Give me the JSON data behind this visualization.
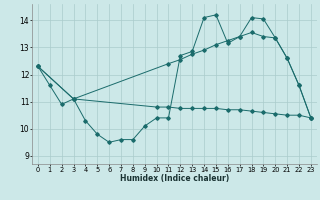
{
  "xlabel": "Humidex (Indice chaleur)",
  "xlim": [
    -0.5,
    23.5
  ],
  "ylim": [
    8.7,
    14.6
  ],
  "yticks": [
    9,
    10,
    11,
    12,
    13,
    14
  ],
  "xticks": [
    0,
    1,
    2,
    3,
    4,
    5,
    6,
    7,
    8,
    9,
    10,
    11,
    12,
    13,
    14,
    15,
    16,
    17,
    18,
    19,
    20,
    21,
    22,
    23
  ],
  "bg_color": "#cce8e8",
  "grid_color": "#aacccc",
  "line_color": "#1a6b6b",
  "series": [
    {
      "x": [
        0,
        1,
        2,
        3,
        4,
        5,
        6,
        7,
        8,
        9,
        10,
        11,
        12,
        13,
        14,
        15,
        16,
        17,
        18,
        19,
        20,
        21,
        22,
        23
      ],
      "y": [
        12.3,
        11.6,
        10.9,
        11.1,
        10.3,
        9.8,
        9.5,
        9.6,
        9.6,
        10.1,
        10.4,
        10.4,
        12.7,
        12.85,
        14.1,
        14.2,
        13.15,
        13.4,
        14.1,
        14.05,
        13.35,
        12.6,
        11.6,
        10.4
      ]
    },
    {
      "x": [
        0,
        3,
        11,
        12,
        13,
        14,
        15,
        16,
        17,
        18,
        19,
        20,
        21,
        22,
        23
      ],
      "y": [
        12.3,
        11.1,
        12.4,
        12.55,
        12.75,
        12.9,
        13.1,
        13.25,
        13.4,
        13.55,
        13.4,
        13.35,
        12.6,
        11.6,
        10.4
      ]
    },
    {
      "x": [
        0,
        3,
        10,
        11,
        12,
        13,
        14,
        15,
        16,
        17,
        18,
        19,
        20,
        21,
        22,
        23
      ],
      "y": [
        12.3,
        11.1,
        10.8,
        10.8,
        10.75,
        10.75,
        10.75,
        10.75,
        10.7,
        10.7,
        10.65,
        10.6,
        10.55,
        10.5,
        10.5,
        10.4
      ]
    }
  ]
}
